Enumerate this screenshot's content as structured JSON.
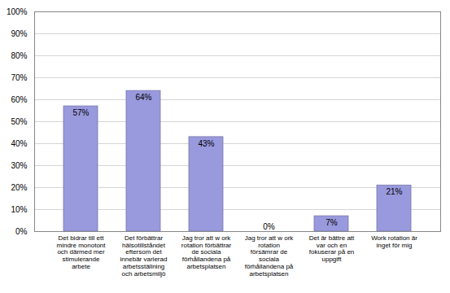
{
  "chart_data": {
    "type": "bar",
    "categories": [
      "Det bidrar till ett\nmindre monotont\noch därmed mer\nstimulerande\narbete",
      "Det förbättrar\nhälsotillståndet\neftersom det\ninnebär varierad\narbetsställning\noch arbetsmiljö",
      "Jag tror att w ork\nrotation förbättrar\nde sociala\nförhållandena på\narbetsplatsen",
      "Jag tror att w ork\nrotation\nförsämrar de\nsociala\nförhållandena på\narbetsplatsen",
      "Det är bättre att\nvar och en\nfokuserar på en\nuppgift",
      "Work rotation är\ninget för mig"
    ],
    "values": [
      57,
      64,
      43,
      0,
      7,
      21
    ],
    "value_labels": [
      "57%",
      "64%",
      "43%",
      "0%",
      "7%",
      "21%"
    ],
    "data_labels": true,
    "color": "#9999dd",
    "ylim": [
      0,
      100
    ],
    "yticks": [
      {
        "value": 0,
        "label": "0%"
      },
      {
        "value": 10,
        "label": "10%"
      },
      {
        "value": 20,
        "label": "20%"
      },
      {
        "value": 30,
        "label": "30%"
      },
      {
        "value": 40,
        "label": "40%"
      },
      {
        "value": 50,
        "label": "50%"
      },
      {
        "value": 60,
        "label": "60%"
      },
      {
        "value": 70,
        "label": "70%"
      },
      {
        "value": 80,
        "label": "80%"
      },
      {
        "value": 90,
        "label": "90%"
      },
      {
        "value": 100,
        "label": "100%"
      }
    ],
    "grid": true
  }
}
